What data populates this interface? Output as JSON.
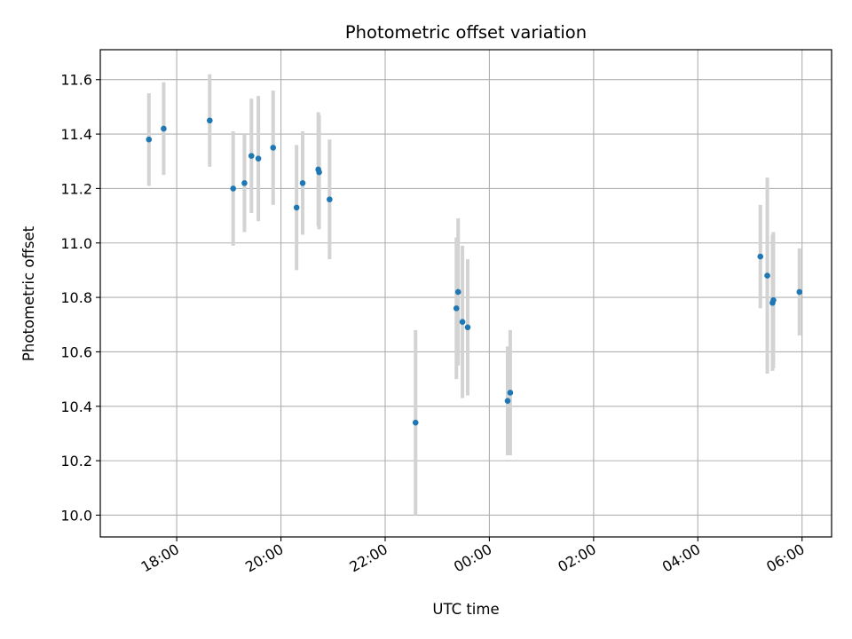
{
  "chart_data": {
    "type": "scatter",
    "title": "Photometric offset variation",
    "xlabel": "UTC time",
    "ylabel": "Photometric offset",
    "x_unit": "time of day (UTC)",
    "x_ticks": [
      "18:00",
      "20:00",
      "22:00",
      "00:00",
      "02:00",
      "04:00",
      "06:00"
    ],
    "y_ticks": [
      "10.0",
      "10.2",
      "10.4",
      "10.6",
      "10.8",
      "11.0",
      "11.2",
      "11.4",
      "11.6"
    ],
    "xlim": [
      "16:32",
      "06:34"
    ],
    "ylim": [
      9.92,
      11.71
    ],
    "grid": true,
    "point_color": "#1f77b4",
    "errorbar_color": "#d3d3d3",
    "points": [
      {
        "x": "17:28",
        "y": 11.38,
        "err": 0.17
      },
      {
        "x": "17:45",
        "y": 11.42,
        "err": 0.17
      },
      {
        "x": "18:38",
        "y": 11.45,
        "err": 0.17
      },
      {
        "x": "19:05",
        "y": 11.2,
        "err": 0.21
      },
      {
        "x": "19:18",
        "y": 11.22,
        "err": 0.18
      },
      {
        "x": "19:26",
        "y": 11.32,
        "err": 0.21
      },
      {
        "x": "19:34",
        "y": 11.31,
        "err": 0.23
      },
      {
        "x": "19:51",
        "y": 11.35,
        "err": 0.21
      },
      {
        "x": "20:18",
        "y": 11.13,
        "err": 0.23
      },
      {
        "x": "20:25",
        "y": 11.22,
        "err": 0.19
      },
      {
        "x": "20:43",
        "y": 11.27,
        "err": 0.21
      },
      {
        "x": "20:44",
        "y": 11.26,
        "err": 0.21
      },
      {
        "x": "20:56",
        "y": 11.16,
        "err": 0.22
      },
      {
        "x": "22:35",
        "y": 10.34,
        "err": 0.34
      },
      {
        "x": "23:22",
        "y": 10.76,
        "err": 0.26
      },
      {
        "x": "23:24",
        "y": 10.82,
        "err": 0.27
      },
      {
        "x": "23:29",
        "y": 10.71,
        "err": 0.28
      },
      {
        "x": "23:35",
        "y": 10.69,
        "err": 0.25
      },
      {
        "x": "00:21",
        "y": 10.42,
        "err": 0.2
      },
      {
        "x": "00:24",
        "y": 10.45,
        "err": 0.23
      },
      {
        "x": "05:12",
        "y": 10.95,
        "err": 0.19
      },
      {
        "x": "05:20",
        "y": 10.88,
        "err": 0.36
      },
      {
        "x": "05:26",
        "y": 10.78,
        "err": 0.25
      },
      {
        "x": "05:27",
        "y": 10.79,
        "err": 0.25
      },
      {
        "x": "05:57",
        "y": 10.82,
        "err": 0.16
      }
    ]
  }
}
